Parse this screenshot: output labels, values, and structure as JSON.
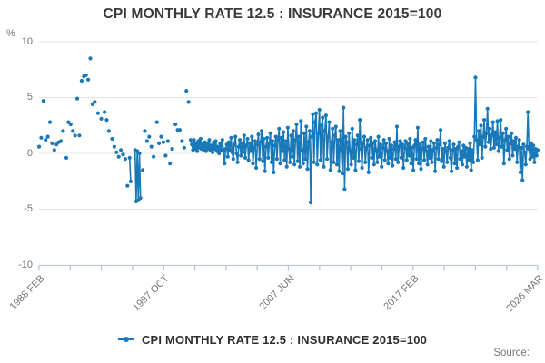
{
  "chart": {
    "title": "CPI MONTHLY RATE 12.5 : INSURANCE 2015=100",
    "y_unit": "%"
  },
  "legend": {
    "label": "CPI MONTHLY RATE 12.5 : INSURANCE 2015=100"
  },
  "footer": {
    "source_label": "Source:"
  },
  "chart_data": {
    "type": "line",
    "title": "CPI MONTHLY RATE 12.5 : INSURANCE 2015=100",
    "xlabel": "",
    "ylabel": "%",
    "ylim": [
      -10,
      10
    ],
    "yticks": [
      10,
      5,
      0,
      -5,
      -10
    ],
    "grid": true,
    "legend_position": "bottom",
    "legend_entries": [
      "CPI MONTHLY RATE 12.5 : INSURANCE 2015=100"
    ],
    "x_axis": {
      "unit": "months since 1988 FEB",
      "range_months": [
        0,
        457
      ],
      "tick_count": 17,
      "labeled_tick_indices": [
        0,
        4,
        8,
        12,
        16
      ],
      "tick_labels": [
        "1988 FEB",
        "1997 OCT",
        "2007 JUN",
        "2017 FEB",
        "2026 MAR"
      ]
    },
    "colors": {
      "series": "#1878b8",
      "grid": "#e4e4e4",
      "axis": "#b9c6e0",
      "title_text": "#3a3a3a",
      "tick_text": "#757575"
    },
    "sparse_points": [
      [
        0,
        0.6
      ],
      [
        2,
        1.4
      ],
      [
        4,
        4.7
      ],
      [
        6,
        1.2
      ],
      [
        8,
        1.5
      ],
      [
        10,
        2.8
      ],
      [
        12,
        0.9
      ],
      [
        14,
        0.3
      ],
      [
        16,
        0.8
      ],
      [
        18,
        1.0
      ],
      [
        20,
        1.1
      ],
      [
        22,
        2.0
      ],
      [
        25,
        -0.4
      ],
      [
        27,
        2.8
      ],
      [
        29,
        2.6
      ],
      [
        31,
        2.0
      ],
      [
        33,
        1.6
      ],
      [
        35,
        4.9
      ],
      [
        37,
        1.6
      ],
      [
        39,
        6.5
      ],
      [
        41,
        6.9
      ],
      [
        43,
        7.0
      ],
      [
        45,
        6.6
      ],
      [
        47,
        8.5
      ],
      [
        49,
        4.4
      ],
      [
        51,
        4.6
      ],
      [
        54,
        3.6
      ],
      [
        57,
        3.1
      ],
      [
        60,
        3.7
      ],
      [
        62,
        3.0
      ],
      [
        64,
        2.0
      ],
      [
        67,
        1.3
      ],
      [
        69,
        0.6
      ],
      [
        71,
        0.1
      ],
      [
        73,
        -0.3
      ],
      [
        75,
        0.3
      ],
      [
        77,
        -0.1
      ],
      [
        79,
        -0.5
      ],
      [
        81,
        -2.9
      ],
      [
        83,
        -0.4
      ],
      [
        84,
        -2.5
      ],
      [
        88,
        0.3
      ],
      [
        89,
        -4.3
      ],
      [
        90,
        0.2
      ],
      [
        91,
        -4.2
      ],
      [
        92,
        0.0
      ],
      [
        93,
        -4.0
      ],
      [
        95,
        -1.5
      ],
      [
        97,
        2.0
      ],
      [
        99,
        1.1
      ],
      [
        101,
        1.5
      ],
      [
        103,
        0.6
      ],
      [
        105,
        -0.3
      ],
      [
        108,
        2.8
      ],
      [
        110,
        0.9
      ],
      [
        112,
        1.5
      ],
      [
        114,
        1.0
      ],
      [
        116,
        -0.2
      ],
      [
        118,
        1.1
      ],
      [
        120,
        -0.9
      ],
      [
        122,
        0.4
      ],
      [
        125,
        2.6
      ],
      [
        127,
        2.1
      ],
      [
        129,
        2.1
      ],
      [
        131,
        1.1
      ],
      [
        133,
        0.5
      ],
      [
        135,
        5.6
      ],
      [
        137,
        4.6
      ],
      [
        139,
        1.2
      ]
    ],
    "dense_series": {
      "start_month": 140,
      "values": [
        0.8,
        0.3,
        1.2,
        0.4,
        0.9,
        0.2,
        1.1,
        0.5,
        1.3,
        0.4,
        0.8,
        0.3,
        1.0,
        0.2,
        0.9,
        0.4,
        1.2,
        0.3,
        0.7,
        0.1,
        1.0,
        0.4,
        1.1,
        0.2,
        0.6,
        0.0,
        0.9,
        0.3,
        1.2,
        0.2,
        -0.9,
        0.4,
        0.8,
        -0.3,
        1.0,
        0.3,
        1.4,
        0.1,
        -0.5,
        0.8,
        1.5,
        0.0,
        -0.8,
        0.6,
        1.2,
        -0.2,
        0.9,
        0.1,
        1.6,
        -0.4,
        0.7,
        1.3,
        -0.6,
        0.9,
        0.2,
        1.5,
        -0.9,
        0.5,
        1.1,
        -1.3,
        0.8,
        1.7,
        -0.5,
        1.0,
        2.0,
        -0.7,
        1.3,
        -1.6,
        0.6,
        1.4,
        -0.4,
        0.9,
        1.8,
        -0.8,
        1.1,
        -1.7,
        0.7,
        1.5,
        -0.5,
        1.2,
        2.2,
        -0.9,
        1.4,
        0.2,
        1.9,
        -0.6,
        1.1,
        -1.2,
        2.3,
        0.4,
        -0.8,
        1.6,
        -0.3,
        2.0,
        -1.0,
        1.2,
        2.6,
        -0.7,
        1.5,
        -1.2,
        2.9,
        0.3,
        -0.9,
        1.8,
        -0.5,
        2.4,
        -1.4,
        1.0,
        2.0,
        -4.4,
        1.5,
        3.5,
        -0.8,
        2.8,
        3.6,
        -1.0,
        1.8,
        3.9,
        -0.6,
        2.5,
        3.2,
        -1.2,
        2.0,
        3.4,
        -0.5,
        1.5,
        2.8,
        -1.5,
        1.0,
        2.2,
        -0.8,
        1.6,
        2.4,
        -1.0,
        1.2,
        -1.6,
        2.0,
        0.3,
        -1.8,
        4.1,
        -3.2,
        1.5,
        1.0,
        -1.4,
        1.8,
        0.2,
        -1.0,
        2.2,
        -0.4,
        1.2,
        -1.5,
        0.8,
        1.6,
        -0.7,
        3.0,
        0.4,
        -1.3,
        0.9,
        1.5,
        -0.8,
        0.5,
        1.2,
        -1.7,
        0.7,
        1.4,
        -0.4,
        0.9,
        -1.0,
        1.1,
        0.3,
        -0.8,
        1.5,
        -0.3,
        0.8,
        -1.2,
        0.5,
        1.2,
        -0.6,
        0.9,
        0.2,
        -0.9,
        1.3,
        -0.4,
        0.7,
        -1.1,
        0.4,
        1.0,
        -0.5,
        2.4,
        -0.8,
        0.6,
        1.1,
        -0.4,
        0.8,
        -1.3,
        0.5,
        1.1,
        -0.6,
        0.9,
        -0.2,
        1.3,
        -0.9,
        0.5,
        -1.5,
        0.7,
        1.2,
        -0.5,
        2.3,
        -0.9,
        0.8,
        -1.4,
        0.4,
        1.0,
        -0.6,
        1.3,
        0.2,
        -1.0,
        0.6,
        -0.4,
        1.1,
        -0.8,
        0.3,
        0.9,
        -1.6,
        0.5,
        1.2,
        -0.5,
        0.8,
        2.1,
        -0.7,
        0.4,
        -1.2,
        0.9,
        0.2,
        -0.8,
        0.5,
        1.1,
        -0.4,
        -1.6,
        0.3,
        0.8,
        -0.9,
        0.4,
        -1.3,
        0.6,
        1.0,
        -0.5,
        0.2,
        -1.0,
        0.7,
        -0.3,
        0.5,
        -1.2,
        0.4,
        -0.6,
        0.9,
        -1.5,
        0.3,
        -0.8,
        1.5,
        6.8,
        1.2,
        -0.6,
        2.0,
        0.8,
        2.5,
        -0.4,
        1.5,
        3.0,
        0.6,
        1.8,
        4.0,
        1.0,
        2.2,
        0.4,
        1.6,
        2.8,
        0.5,
        1.9,
        0.8,
        2.9,
        0.2,
        1.4,
        3.0,
        0.6,
        1.8,
        -0.9,
        1.2,
        2.2,
        0.3,
        1.5,
        -0.5,
        0.9,
        1.8,
        -0.2,
        1.1,
        0.4,
        1.4,
        -0.8,
        0.6,
        1.2,
        -1.7,
        0.5,
        -2.4,
        0.8,
        0.1,
        -1.0,
        0.6,
        3.7,
        0.4,
        -0.5,
        0.9,
        -0.3,
        0.7,
        -0.8,
        0.4,
        -0.2,
        0.3
      ]
    }
  }
}
